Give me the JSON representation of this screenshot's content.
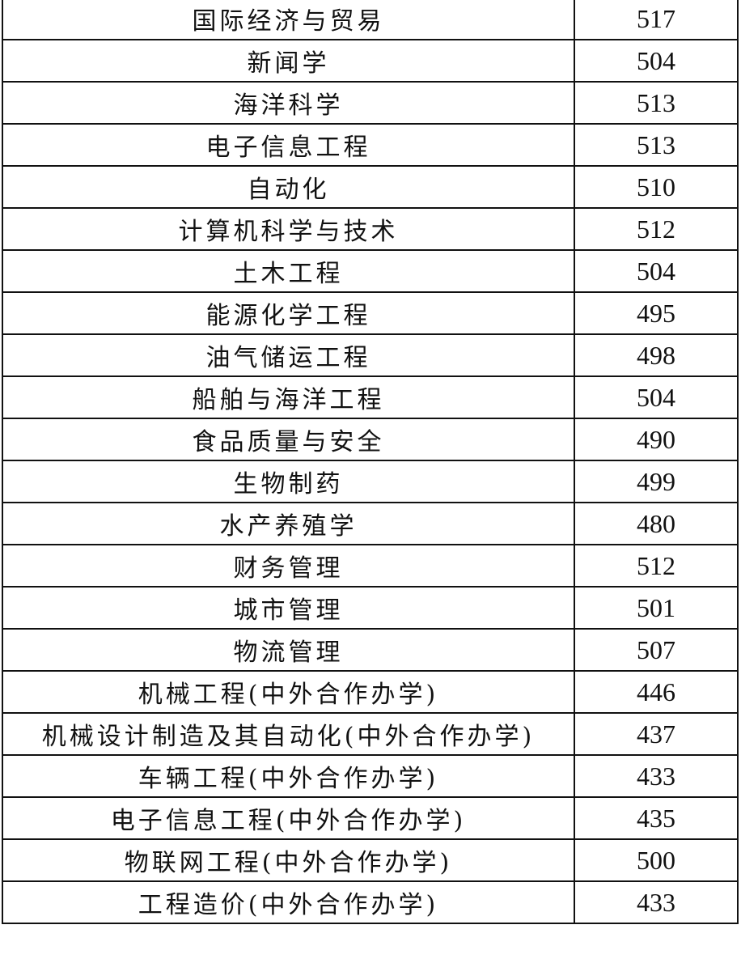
{
  "table": {
    "rows": [
      {
        "major": "国际经济与贸易",
        "score": "517"
      },
      {
        "major": "新闻学",
        "score": "504"
      },
      {
        "major": "海洋科学",
        "score": "513"
      },
      {
        "major": "电子信息工程",
        "score": "513"
      },
      {
        "major": "自动化",
        "score": "510"
      },
      {
        "major": "计算机科学与技术",
        "score": "512"
      },
      {
        "major": "土木工程",
        "score": "504"
      },
      {
        "major": "能源化学工程",
        "score": "495"
      },
      {
        "major": "油气储运工程",
        "score": "498"
      },
      {
        "major": "船舶与海洋工程",
        "score": "504"
      },
      {
        "major": "食品质量与安全",
        "score": "490"
      },
      {
        "major": "生物制药",
        "score": "499"
      },
      {
        "major": "水产养殖学",
        "score": "480"
      },
      {
        "major": "财务管理",
        "score": "512"
      },
      {
        "major": "城市管理",
        "score": "501"
      },
      {
        "major": "物流管理",
        "score": "507"
      },
      {
        "major": "机械工程(中外合作办学)",
        "score": "446"
      },
      {
        "major": "机械设计制造及其自动化(中外合作办学)",
        "score": "437"
      },
      {
        "major": "车辆工程(中外合作办学)",
        "score": "433"
      },
      {
        "major": "电子信息工程(中外合作办学)",
        "score": "435"
      },
      {
        "major": "物联网工程(中外合作办学)",
        "score": "500"
      },
      {
        "major": "工程造价(中外合作办学)",
        "score": "433"
      }
    ]
  }
}
